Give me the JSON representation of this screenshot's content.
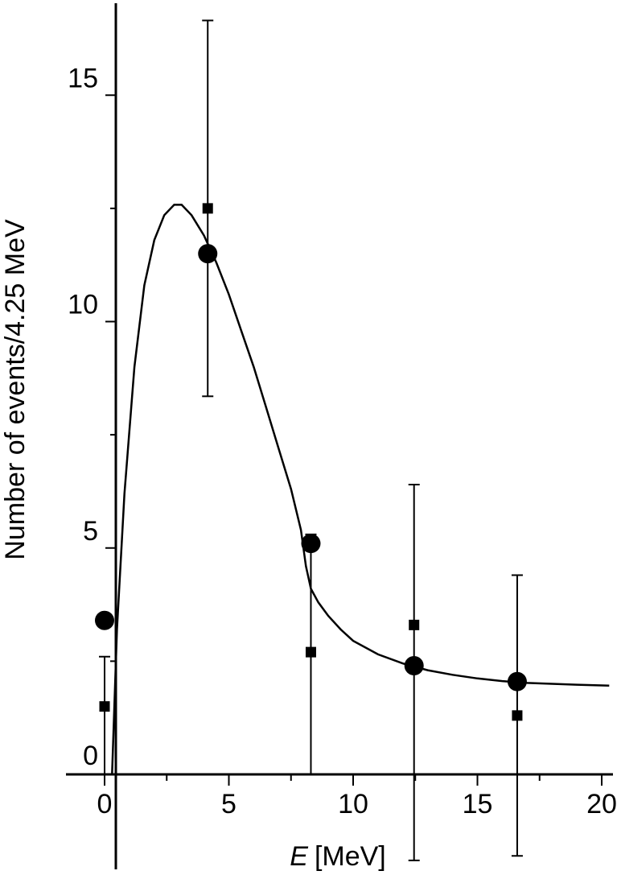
{
  "chart_data": {
    "type": "scatter",
    "title": "",
    "xlabel_symbol": "E",
    "xlabel_unit": "[MeV]",
    "ylabel": "Number of events/4.25 MeV",
    "xlim": [
      -1.5,
      20.5
    ],
    "ylim": [
      -2,
      17
    ],
    "x_ticks": [
      0,
      5,
      10,
      15,
      20
    ],
    "y_ticks": [
      0,
      5,
      10,
      15
    ],
    "grid": false,
    "colors": {
      "line": "#000000",
      "markers": "#000000"
    },
    "series": [
      {
        "marker": "square",
        "points": [
          {
            "x": 0,
            "y": 1.5,
            "err_low": 1.5,
            "err_high": 1.1
          },
          {
            "x": 4.15,
            "y": 12.5,
            "err_low": 4.15,
            "err_high": 4.15
          },
          {
            "x": 8.3,
            "y": 2.7,
            "err_low": 2.7,
            "err_high": 2.6
          },
          {
            "x": 12.45,
            "y": 3.3,
            "err_low": 5.2,
            "err_high": 3.1
          },
          {
            "x": 16.6,
            "y": 1.3,
            "err_low": 3.1,
            "err_high": 3.1
          }
        ]
      },
      {
        "marker": "circle",
        "points": [
          {
            "x": 0,
            "y": 3.4
          },
          {
            "x": 4.15,
            "y": 11.5
          },
          {
            "x": 8.3,
            "y": 5.1
          },
          {
            "x": 12.45,
            "y": 2.4
          },
          {
            "x": 16.6,
            "y": 2.05
          }
        ]
      },
      {
        "marker": "line",
        "points": [
          [
            0.3,
            0
          ],
          [
            0.5,
            3.2
          ],
          [
            0.8,
            6.2
          ],
          [
            1.2,
            9.0
          ],
          [
            1.6,
            10.8
          ],
          [
            2.0,
            11.8
          ],
          [
            2.4,
            12.35
          ],
          [
            2.8,
            12.58
          ],
          [
            3.1,
            12.58
          ],
          [
            3.5,
            12.35
          ],
          [
            4.0,
            11.9
          ],
          [
            4.5,
            11.3
          ],
          [
            5.0,
            10.6
          ],
          [
            5.5,
            9.8
          ],
          [
            6.0,
            9.0
          ],
          [
            6.5,
            8.1
          ],
          [
            7.0,
            7.2
          ],
          [
            7.5,
            6.3
          ],
          [
            7.9,
            5.4
          ],
          [
            8.1,
            4.6
          ],
          [
            8.3,
            4.1
          ],
          [
            8.6,
            3.8
          ],
          [
            9.0,
            3.5
          ],
          [
            9.5,
            3.2
          ],
          [
            10.0,
            2.95
          ],
          [
            11.0,
            2.65
          ],
          [
            12.0,
            2.45
          ],
          [
            13.0,
            2.3
          ],
          [
            14.0,
            2.2
          ],
          [
            15.0,
            2.12
          ],
          [
            16.0,
            2.06
          ],
          [
            17.0,
            2.02
          ],
          [
            18.0,
            2.0
          ],
          [
            19.0,
            1.98
          ],
          [
            20.3,
            1.96
          ]
        ]
      }
    ]
  }
}
